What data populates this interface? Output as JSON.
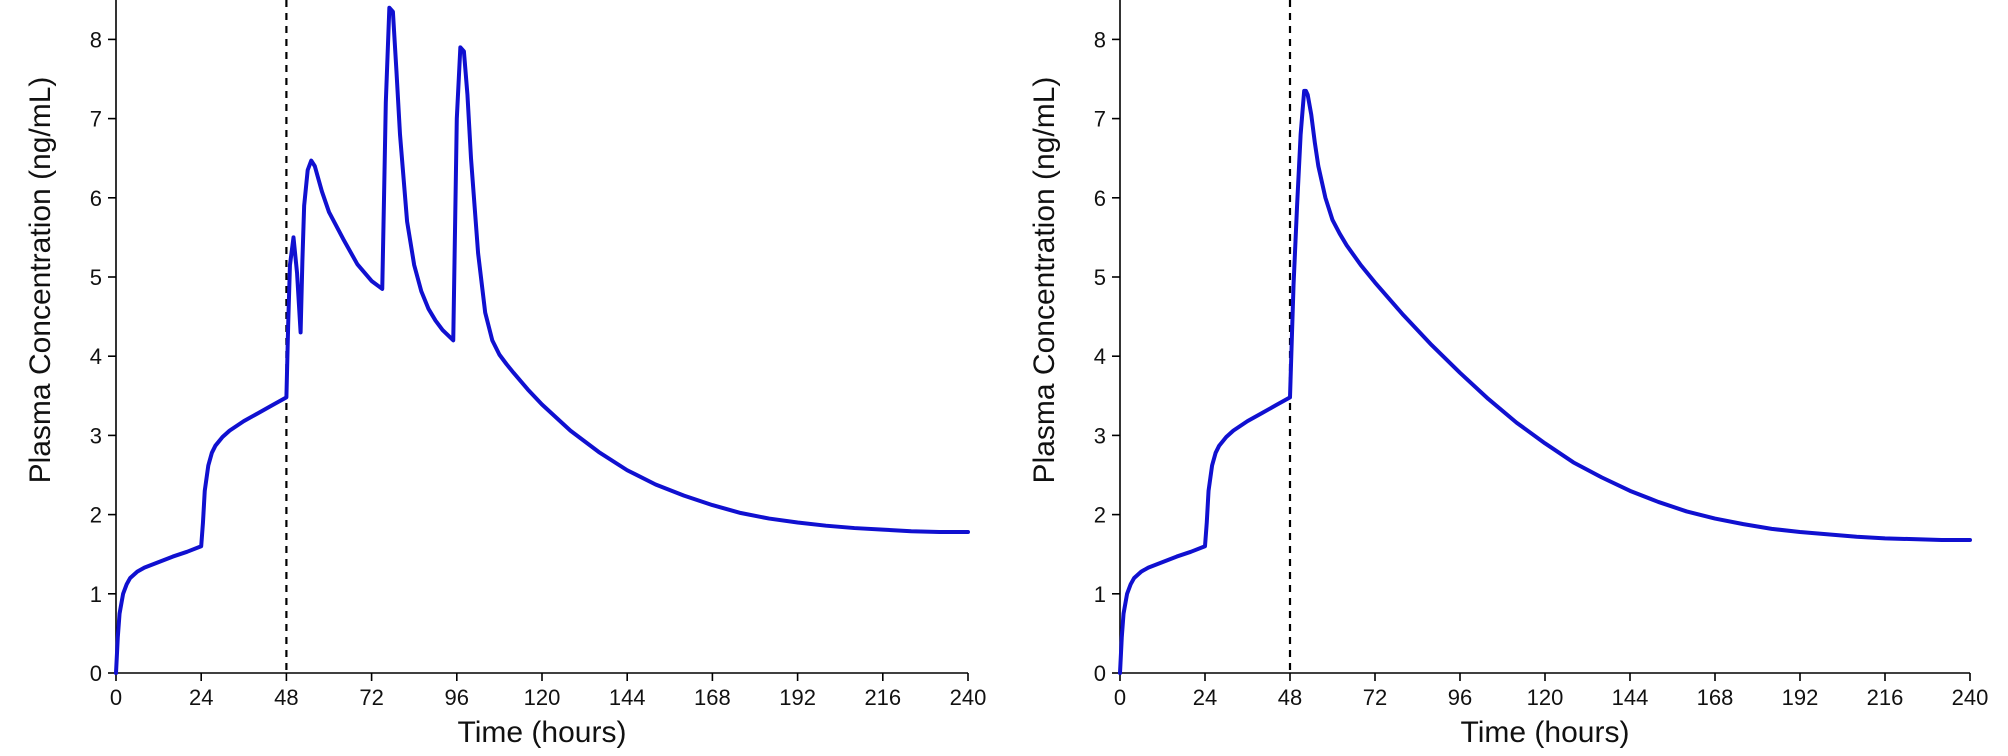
{
  "chart_data": [
    {
      "type": "line",
      "title": "",
      "xlabel": "Time (hours)",
      "ylabel": "Plasma Concentration (ng/mL)",
      "xlim": [
        0,
        240
      ],
      "ylim": [
        0,
        8.5
      ],
      "xticks": [
        0,
        24,
        48,
        72,
        96,
        120,
        144,
        168,
        192,
        216,
        240
      ],
      "yticks": [
        0,
        1,
        2,
        3,
        4,
        5,
        6,
        7,
        8
      ],
      "grid": false,
      "legend": "none",
      "vline_x": 48,
      "line_color": "#1010d0",
      "series": [
        {
          "x": [
            0,
            0.5,
            1,
            2,
            3,
            4,
            6,
            8,
            12,
            16,
            20,
            24,
            24.5,
            25,
            26,
            27,
            28,
            30,
            32,
            36,
            40,
            44,
            48,
            48.5,
            49,
            50,
            51,
            52,
            52.5,
            53,
            54,
            55,
            56,
            58,
            60,
            64,
            68,
            72,
            75,
            75.5,
            76,
            77,
            78,
            79,
            80,
            82,
            84,
            86,
            88,
            90,
            92,
            95,
            95.5,
            96,
            97,
            98,
            99,
            100,
            102,
            104,
            106,
            108,
            110,
            112,
            116,
            120,
            128,
            136,
            144,
            152,
            160,
            168,
            176,
            184,
            192,
            200,
            208,
            216,
            224,
            232,
            240
          ],
          "y": [
            0,
            0.45,
            0.75,
            1.0,
            1.12,
            1.2,
            1.28,
            1.33,
            1.4,
            1.47,
            1.53,
            1.6,
            1.9,
            2.3,
            2.62,
            2.78,
            2.87,
            2.98,
            3.06,
            3.18,
            3.28,
            3.38,
            3.48,
            4.4,
            5.15,
            5.5,
            5.05,
            4.3,
            5.2,
            5.9,
            6.35,
            6.47,
            6.4,
            6.08,
            5.82,
            5.48,
            5.16,
            4.95,
            4.85,
            6.0,
            7.2,
            8.4,
            8.35,
            7.6,
            6.8,
            5.7,
            5.15,
            4.82,
            4.6,
            4.45,
            4.33,
            4.2,
            5.6,
            7.0,
            7.9,
            7.85,
            7.3,
            6.5,
            5.3,
            4.55,
            4.2,
            4.02,
            3.9,
            3.79,
            3.58,
            3.39,
            3.06,
            2.79,
            2.56,
            2.38,
            2.24,
            2.12,
            2.02,
            1.95,
            1.9,
            1.86,
            1.83,
            1.81,
            1.79,
            1.78,
            1.78
          ]
        }
      ]
    },
    {
      "type": "line",
      "title": "",
      "xlabel": "Time (hours)",
      "ylabel": "Plasma Concentration (ng/mL)",
      "xlim": [
        0,
        240
      ],
      "ylim": [
        0,
        8.5
      ],
      "xticks": [
        0,
        24,
        48,
        72,
        96,
        120,
        144,
        168,
        192,
        216,
        240
      ],
      "yticks": [
        0,
        1,
        2,
        3,
        4,
        5,
        6,
        7,
        8
      ],
      "grid": false,
      "legend": "none",
      "vline_x": 48,
      "line_color": "#1010d0",
      "series": [
        {
          "x": [
            0,
            0.5,
            1,
            2,
            3,
            4,
            6,
            8,
            12,
            16,
            20,
            24,
            24.5,
            25,
            26,
            27,
            28,
            30,
            32,
            36,
            40,
            44,
            48,
            48.5,
            49,
            50,
            51,
            52,
            52.5,
            53,
            54,
            55,
            56,
            58,
            60,
            62,
            64,
            68,
            72,
            80,
            88,
            96,
            104,
            112,
            120,
            128,
            136,
            144,
            152,
            160,
            168,
            176,
            184,
            192,
            200,
            208,
            216,
            224,
            232,
            240
          ],
          "y": [
            0,
            0.45,
            0.75,
            1.0,
            1.12,
            1.2,
            1.28,
            1.33,
            1.4,
            1.47,
            1.53,
            1.6,
            1.9,
            2.3,
            2.62,
            2.78,
            2.87,
            2.98,
            3.06,
            3.18,
            3.28,
            3.38,
            3.48,
            4.2,
            4.9,
            5.9,
            6.8,
            7.35,
            7.35,
            7.3,
            7.05,
            6.7,
            6.4,
            6.0,
            5.72,
            5.55,
            5.4,
            5.15,
            4.93,
            4.52,
            4.14,
            3.79,
            3.46,
            3.16,
            2.9,
            2.66,
            2.47,
            2.3,
            2.16,
            2.04,
            1.95,
            1.88,
            1.82,
            1.78,
            1.75,
            1.72,
            1.7,
            1.69,
            1.68,
            1.68
          ]
        }
      ]
    }
  ]
}
